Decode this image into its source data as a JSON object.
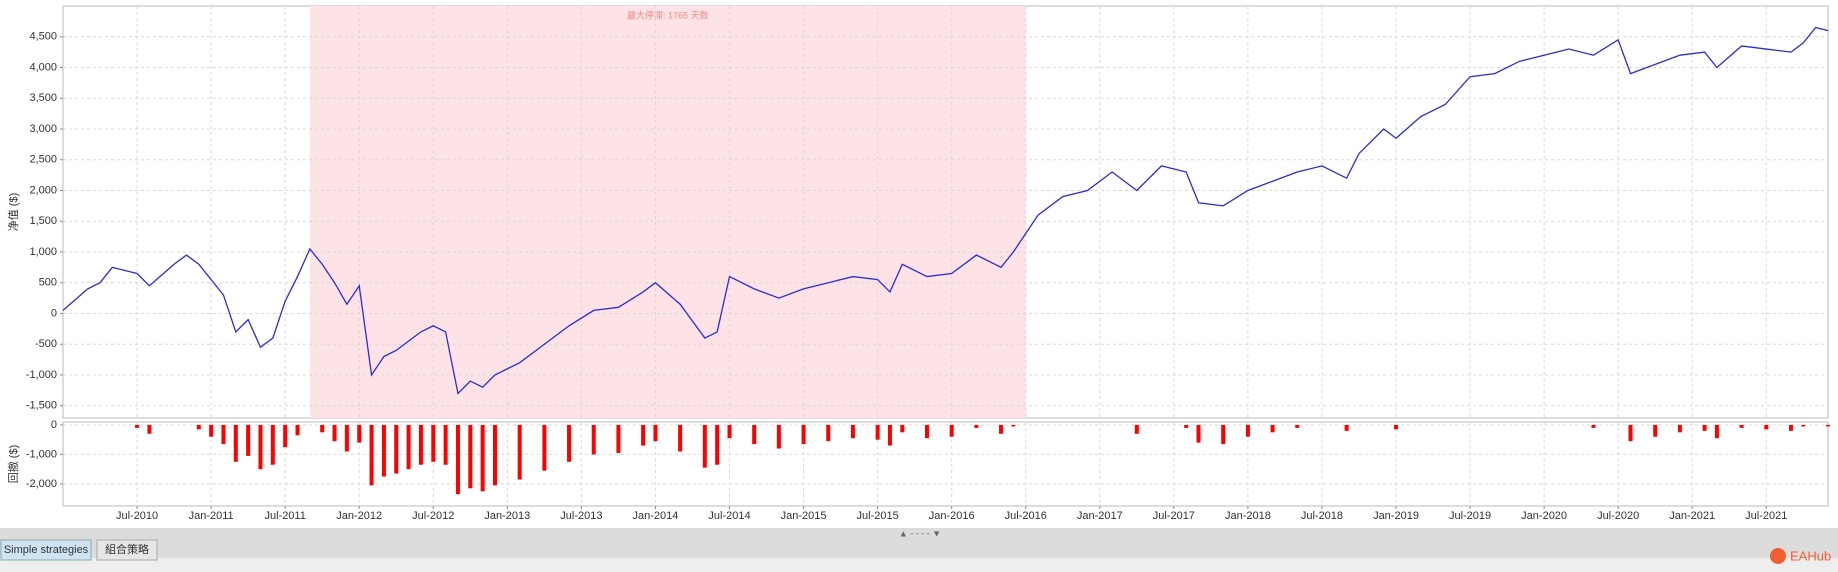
{
  "chart_data": [
    {
      "type": "line",
      "ylabel": "净值 ($)",
      "color": "#2b2bd9",
      "grid": true,
      "xlim": [
        "2010-01",
        "2021-12"
      ],
      "ylim": [
        -1700,
        5000
      ],
      "yticks": [
        {
          "value": -1500,
          "label": "-1,500"
        },
        {
          "value": -1000,
          "label": "-1,000"
        },
        -500,
        0,
        500,
        {
          "value": 1000,
          "label": "1,000"
        },
        {
          "value": 1500,
          "label": "1,500"
        },
        {
          "value": 2000,
          "label": "2,000"
        },
        {
          "value": 2500,
          "label": "2,500"
        },
        {
          "value": 3000,
          "label": "3,000"
        },
        {
          "value": 3500,
          "label": "3,500"
        },
        {
          "value": 4000,
          "label": "4,000"
        },
        {
          "value": 4500,
          "label": "4,500"
        }
      ],
      "shade": {
        "x": [
          "2011-09",
          "2016-07"
        ],
        "color": "#fde3e5",
        "label": "最大停滞: 1765 天数"
      },
      "x": [
        "2010-01",
        "2010-03",
        "2010-04",
        "2010-05",
        "2010-07",
        "2010-08",
        "2010-10",
        "2010-11",
        "2010-12",
        "2011-01",
        "2011-02",
        "2011-03",
        "2011-04",
        "2011-05",
        "2011-06",
        "2011-07",
        "2011-08",
        "2011-09",
        "2011-10",
        "2011-11",
        "2011-12",
        "2012-01",
        "2012-02",
        "2012-03",
        "2012-04",
        "2012-05",
        "2012-06",
        "2012-07",
        "2012-08",
        "2012-09",
        "2012-10",
        "2012-11",
        "2012-12",
        "2013-02",
        "2013-04",
        "2013-06",
        "2013-08",
        "2013-10",
        "2013-12",
        "2014-01",
        "2014-03",
        "2014-05",
        "2014-06",
        "2014-07",
        "2014-09",
        "2014-11",
        "2015-01",
        "2015-03",
        "2015-05",
        "2015-07",
        "2015-08",
        "2015-09",
        "2015-11",
        "2016-01",
        "2016-03",
        "2016-05",
        "2016-06",
        "2016-07",
        "2016-08",
        "2016-10",
        "2016-12",
        "2017-02",
        "2017-04",
        "2017-06",
        "2017-08",
        "2017-09",
        "2017-11",
        "2018-01",
        "2018-03",
        "2018-05",
        "2018-07",
        "2018-09",
        "2018-10",
        "2018-12",
        "2019-01",
        "2019-03",
        "2019-05",
        "2019-07",
        "2019-09",
        "2019-11",
        "2020-01",
        "2020-03",
        "2020-05",
        "2020-07",
        "2020-08",
        "2020-10",
        "2020-12",
        "2021-02",
        "2021-03",
        "2021-05",
        "2021-07",
        "2021-09",
        "2021-10",
        "2021-11",
        "2021-12"
      ],
      "values": [
        50,
        400,
        500,
        750,
        650,
        450,
        800,
        950,
        800,
        550,
        300,
        -300,
        -100,
        -550,
        -400,
        200,
        600,
        1050,
        800,
        500,
        150,
        450,
        -1000,
        -700,
        -600,
        -450,
        -300,
        -200,
        -300,
        -1300,
        -1100,
        -1200,
        -1000,
        -800,
        -500,
        -200,
        50,
        100,
        350,
        500,
        150,
        -400,
        -300,
        600,
        400,
        250,
        400,
        500,
        600,
        550,
        350,
        800,
        600,
        650,
        950,
        750,
        1000,
        1300,
        1600,
        1900,
        2000,
        2300,
        2000,
        2400,
        2300,
        1800,
        1750,
        2000,
        2150,
        2300,
        2400,
        2200,
        2600,
        3000,
        2850,
        3200,
        3400,
        3850,
        3900,
        4100,
        4200,
        4300,
        4200,
        4450,
        3900,
        4050,
        4200,
        4250,
        4000,
        4350,
        4300,
        4250,
        4400,
        4650,
        4600
      ]
    },
    {
      "type": "bar",
      "ylabel": "回撤 ($)",
      "color": "#ff0000",
      "grid": true,
      "xlim": [
        "2010-01",
        "2021-12"
      ],
      "ylim": [
        -2750,
        100
      ],
      "yticks": [
        {
          "value": -2000,
          "label": "-2,000"
        },
        {
          "value": -1000,
          "label": "-1,000"
        },
        0
      ],
      "xticks": [
        {
          "value": "2010-07",
          "label": "Jul-2010"
        },
        {
          "value": "2011-01",
          "label": "Jan-2011"
        },
        {
          "value": "2011-07",
          "label": "Jul-2011"
        },
        {
          "value": "2012-01",
          "label": "Jan-2012"
        },
        {
          "value": "2012-07",
          "label": "Jul-2012"
        },
        {
          "value": "2013-01",
          "label": "Jan-2013"
        },
        {
          "value": "2013-07",
          "label": "Jul-2013"
        },
        {
          "value": "2014-01",
          "label": "Jan-2014"
        },
        {
          "value": "2014-07",
          "label": "Jul-2014"
        },
        {
          "value": "2015-01",
          "label": "Jan-2015"
        },
        {
          "value": "2015-07",
          "label": "Jul-2015"
        },
        {
          "value": "2016-01",
          "label": "Jan-2016"
        },
        {
          "value": "2016-07",
          "label": "Jul-2016"
        },
        {
          "value": "2017-01",
          "label": "Jan-2017"
        },
        {
          "value": "2017-07",
          "label": "Jul-2017"
        },
        {
          "value": "2018-01",
          "label": "Jan-2018"
        },
        {
          "value": "2018-07",
          "label": "Jul-2018"
        },
        {
          "value": "2019-01",
          "label": "Jan-2019"
        },
        {
          "value": "2019-07",
          "label": "Jul-2019"
        },
        {
          "value": "2020-01",
          "label": "Jan-2020"
        },
        {
          "value": "2020-07",
          "label": "Jul-2020"
        },
        {
          "value": "2021-01",
          "label": "Jan-2021"
        },
        {
          "value": "2021-07",
          "label": "Jul-2021"
        }
      ],
      "x": [
        "2010-01",
        "2010-03",
        "2010-04",
        "2010-05",
        "2010-07",
        "2010-08",
        "2010-10",
        "2010-11",
        "2010-12",
        "2011-01",
        "2011-02",
        "2011-03",
        "2011-04",
        "2011-05",
        "2011-06",
        "2011-07",
        "2011-08",
        "2011-09",
        "2011-10",
        "2011-11",
        "2011-12",
        "2012-01",
        "2012-02",
        "2012-03",
        "2012-04",
        "2012-05",
        "2012-06",
        "2012-07",
        "2012-08",
        "2012-09",
        "2012-10",
        "2012-11",
        "2012-12",
        "2013-02",
        "2013-04",
        "2013-06",
        "2013-08",
        "2013-10",
        "2013-12",
        "2014-01",
        "2014-03",
        "2014-05",
        "2014-06",
        "2014-07",
        "2014-09",
        "2014-11",
        "2015-01",
        "2015-03",
        "2015-05",
        "2015-07",
        "2015-08",
        "2015-09",
        "2015-11",
        "2016-01",
        "2016-03",
        "2016-05",
        "2016-06",
        "2016-07",
        "2016-08",
        "2016-10",
        "2016-12",
        "2017-02",
        "2017-04",
        "2017-06",
        "2017-08",
        "2017-09",
        "2017-11",
        "2018-01",
        "2018-03",
        "2018-05",
        "2018-07",
        "2018-09",
        "2018-10",
        "2018-12",
        "2019-01",
        "2019-03",
        "2019-05",
        "2019-07",
        "2019-09",
        "2019-11",
        "2020-01",
        "2020-03",
        "2020-05",
        "2020-07",
        "2020-08",
        "2020-10",
        "2020-12",
        "2021-02",
        "2021-03",
        "2021-05",
        "2021-07",
        "2021-09",
        "2021-10",
        "2021-11",
        "2021-12"
      ],
      "values": [
        0,
        0,
        0,
        0,
        -100,
        -300,
        0,
        0,
        -150,
        -400,
        -650,
        -1250,
        -1050,
        -1500,
        -1350,
        -750,
        -350,
        0,
        -250,
        -550,
        -900,
        -600,
        -2050,
        -1750,
        -1650,
        -1500,
        -1350,
        -1250,
        -1350,
        -2350,
        -2150,
        -2250,
        -2050,
        -1850,
        -1550,
        -1250,
        -1000,
        -950,
        -700,
        -550,
        -900,
        -1450,
        -1350,
        -450,
        -650,
        -800,
        -650,
        -550,
        -450,
        -500,
        -700,
        -250,
        -450,
        -400,
        -100,
        -300,
        -50,
        0,
        0,
        0,
        0,
        0,
        -300,
        0,
        -100,
        -600,
        -650,
        -400,
        -250,
        -100,
        0,
        -200,
        0,
        0,
        -150,
        0,
        0,
        0,
        0,
        0,
        0,
        0,
        -100,
        0,
        -550,
        -400,
        -250,
        -200,
        -450,
        -100,
        -150,
        -200,
        -50,
        0,
        -50
      ]
    }
  ],
  "tabs": [
    "Simple strategies",
    "組合策略"
  ],
  "watermark": "EAHub"
}
